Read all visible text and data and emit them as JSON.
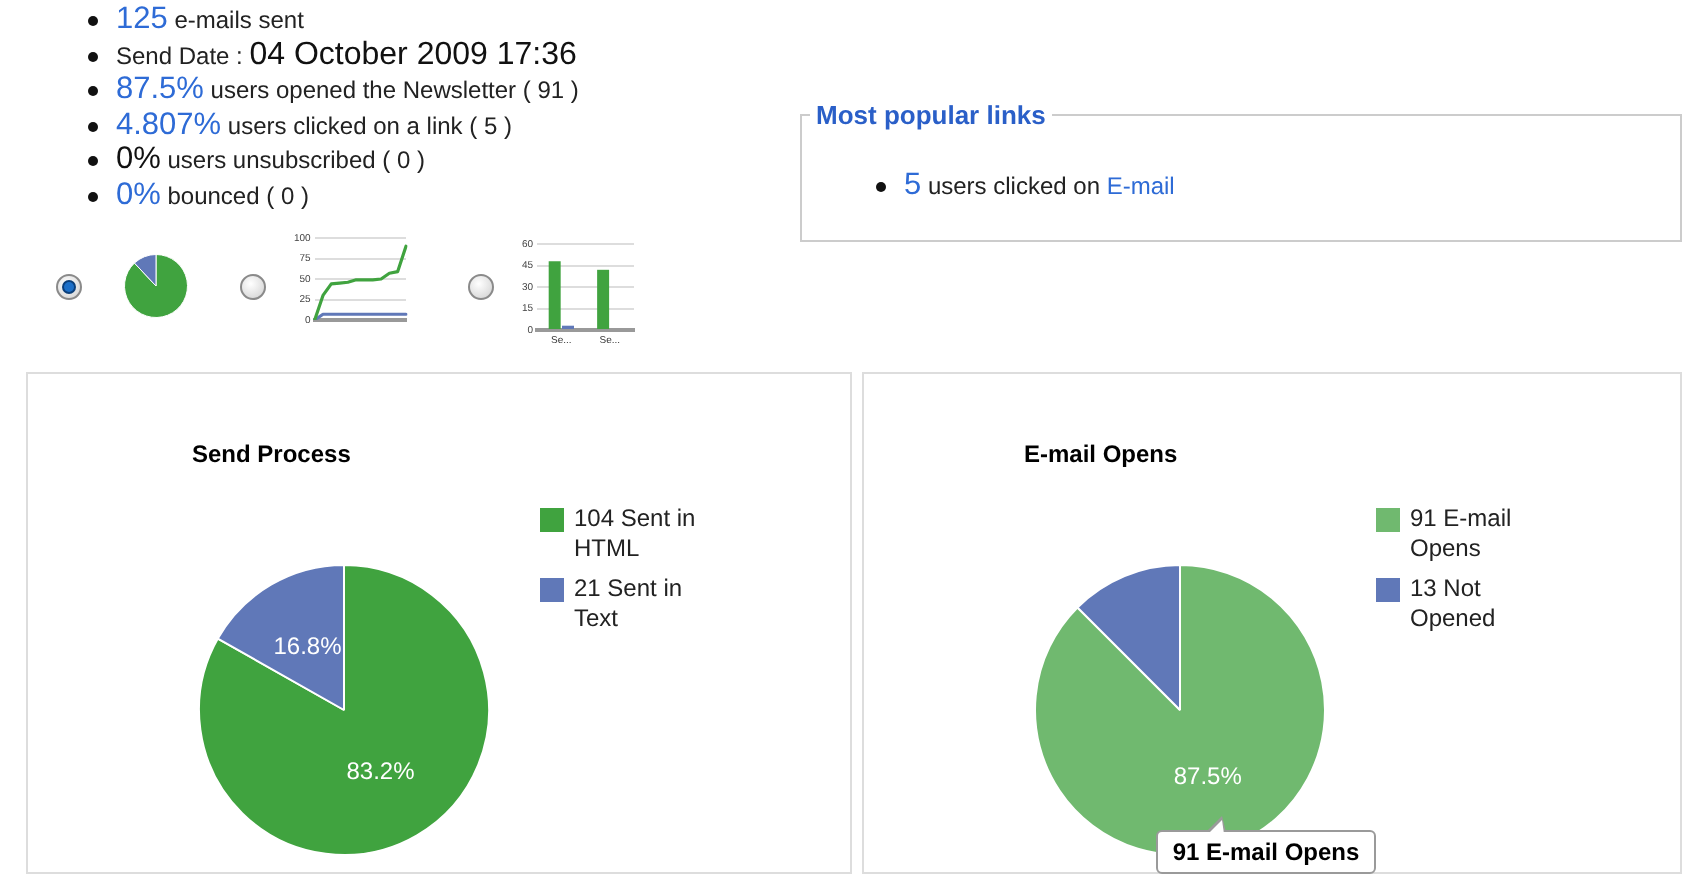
{
  "chart_data": [
    {
      "type": "pie",
      "categories": [
        null,
        null
      ],
      "values": [
        88,
        12
      ],
      "colors": [
        "#40a33f",
        "#6078b8"
      ],
      "annotations": [
        "125 e-mails sent",
        "Send Date : 04 October 2009 17:36",
        "87.5% users opened the Newsletter ( 91 )",
        "4.807% users clicked on a link ( 5 )",
        "0% users unsubscribed ( 0 )",
        "0% bounced ( 0 )",
        "Most popular links",
        "5 users clicked on E-mail"
      ]
    },
    {
      "type": "line",
      "categories": [
        null,
        null,
        null,
        null,
        null,
        null,
        null,
        null,
        null,
        null,
        null,
        null
      ],
      "series": [
        {
          "color": "#40a33f",
          "values": [
            0,
            30,
            44,
            45,
            46,
            49,
            49,
            49,
            50,
            57,
            59,
            90
          ]
        },
        {
          "color": "#6078b8",
          "values": [
            0,
            7,
            7,
            7,
            7,
            7,
            7,
            7,
            7,
            7,
            7,
            7
          ]
        }
      ],
      "ylim": [
        0,
        100
      ],
      "yticks": [
        0,
        25,
        50,
        75,
        100
      ],
      "grid": "y"
    },
    {
      "type": "bar",
      "categories": [
        "Se...",
        "Se..."
      ],
      "series": [
        {
          "color": "#40a33f",
          "values": [
            48,
            42
          ]
        },
        {
          "color": "#6078b8",
          "values": [
            3,
            0
          ]
        }
      ],
      "ylim": [
        0,
        60
      ],
      "yticks": [
        0,
        15,
        30,
        45,
        60
      ],
      "grid": "y"
    },
    {
      "type": "pie",
      "title": "Send Process",
      "categories": [
        "104 Sent in HTML",
        "21 Sent in Text"
      ],
      "values": [
        83.2,
        16.8
      ],
      "colors": [
        "#40a33f",
        "#6078b8"
      ],
      "value_labels": [
        "83.2%",
        "16.8%"
      ],
      "legend": "right"
    },
    {
      "type": "pie",
      "title": "E-mail Opens",
      "categories": [
        "91 E-mail Opens",
        "13 Not Opened"
      ],
      "values": [
        87.5,
        12.5
      ],
      "colors": [
        "#70b96f",
        "#6078b8"
      ],
      "value_labels": [
        "87.5%",
        null
      ],
      "legend": "right",
      "annotations": [
        "91 E-mail Opens"
      ]
    }
  ]
}
